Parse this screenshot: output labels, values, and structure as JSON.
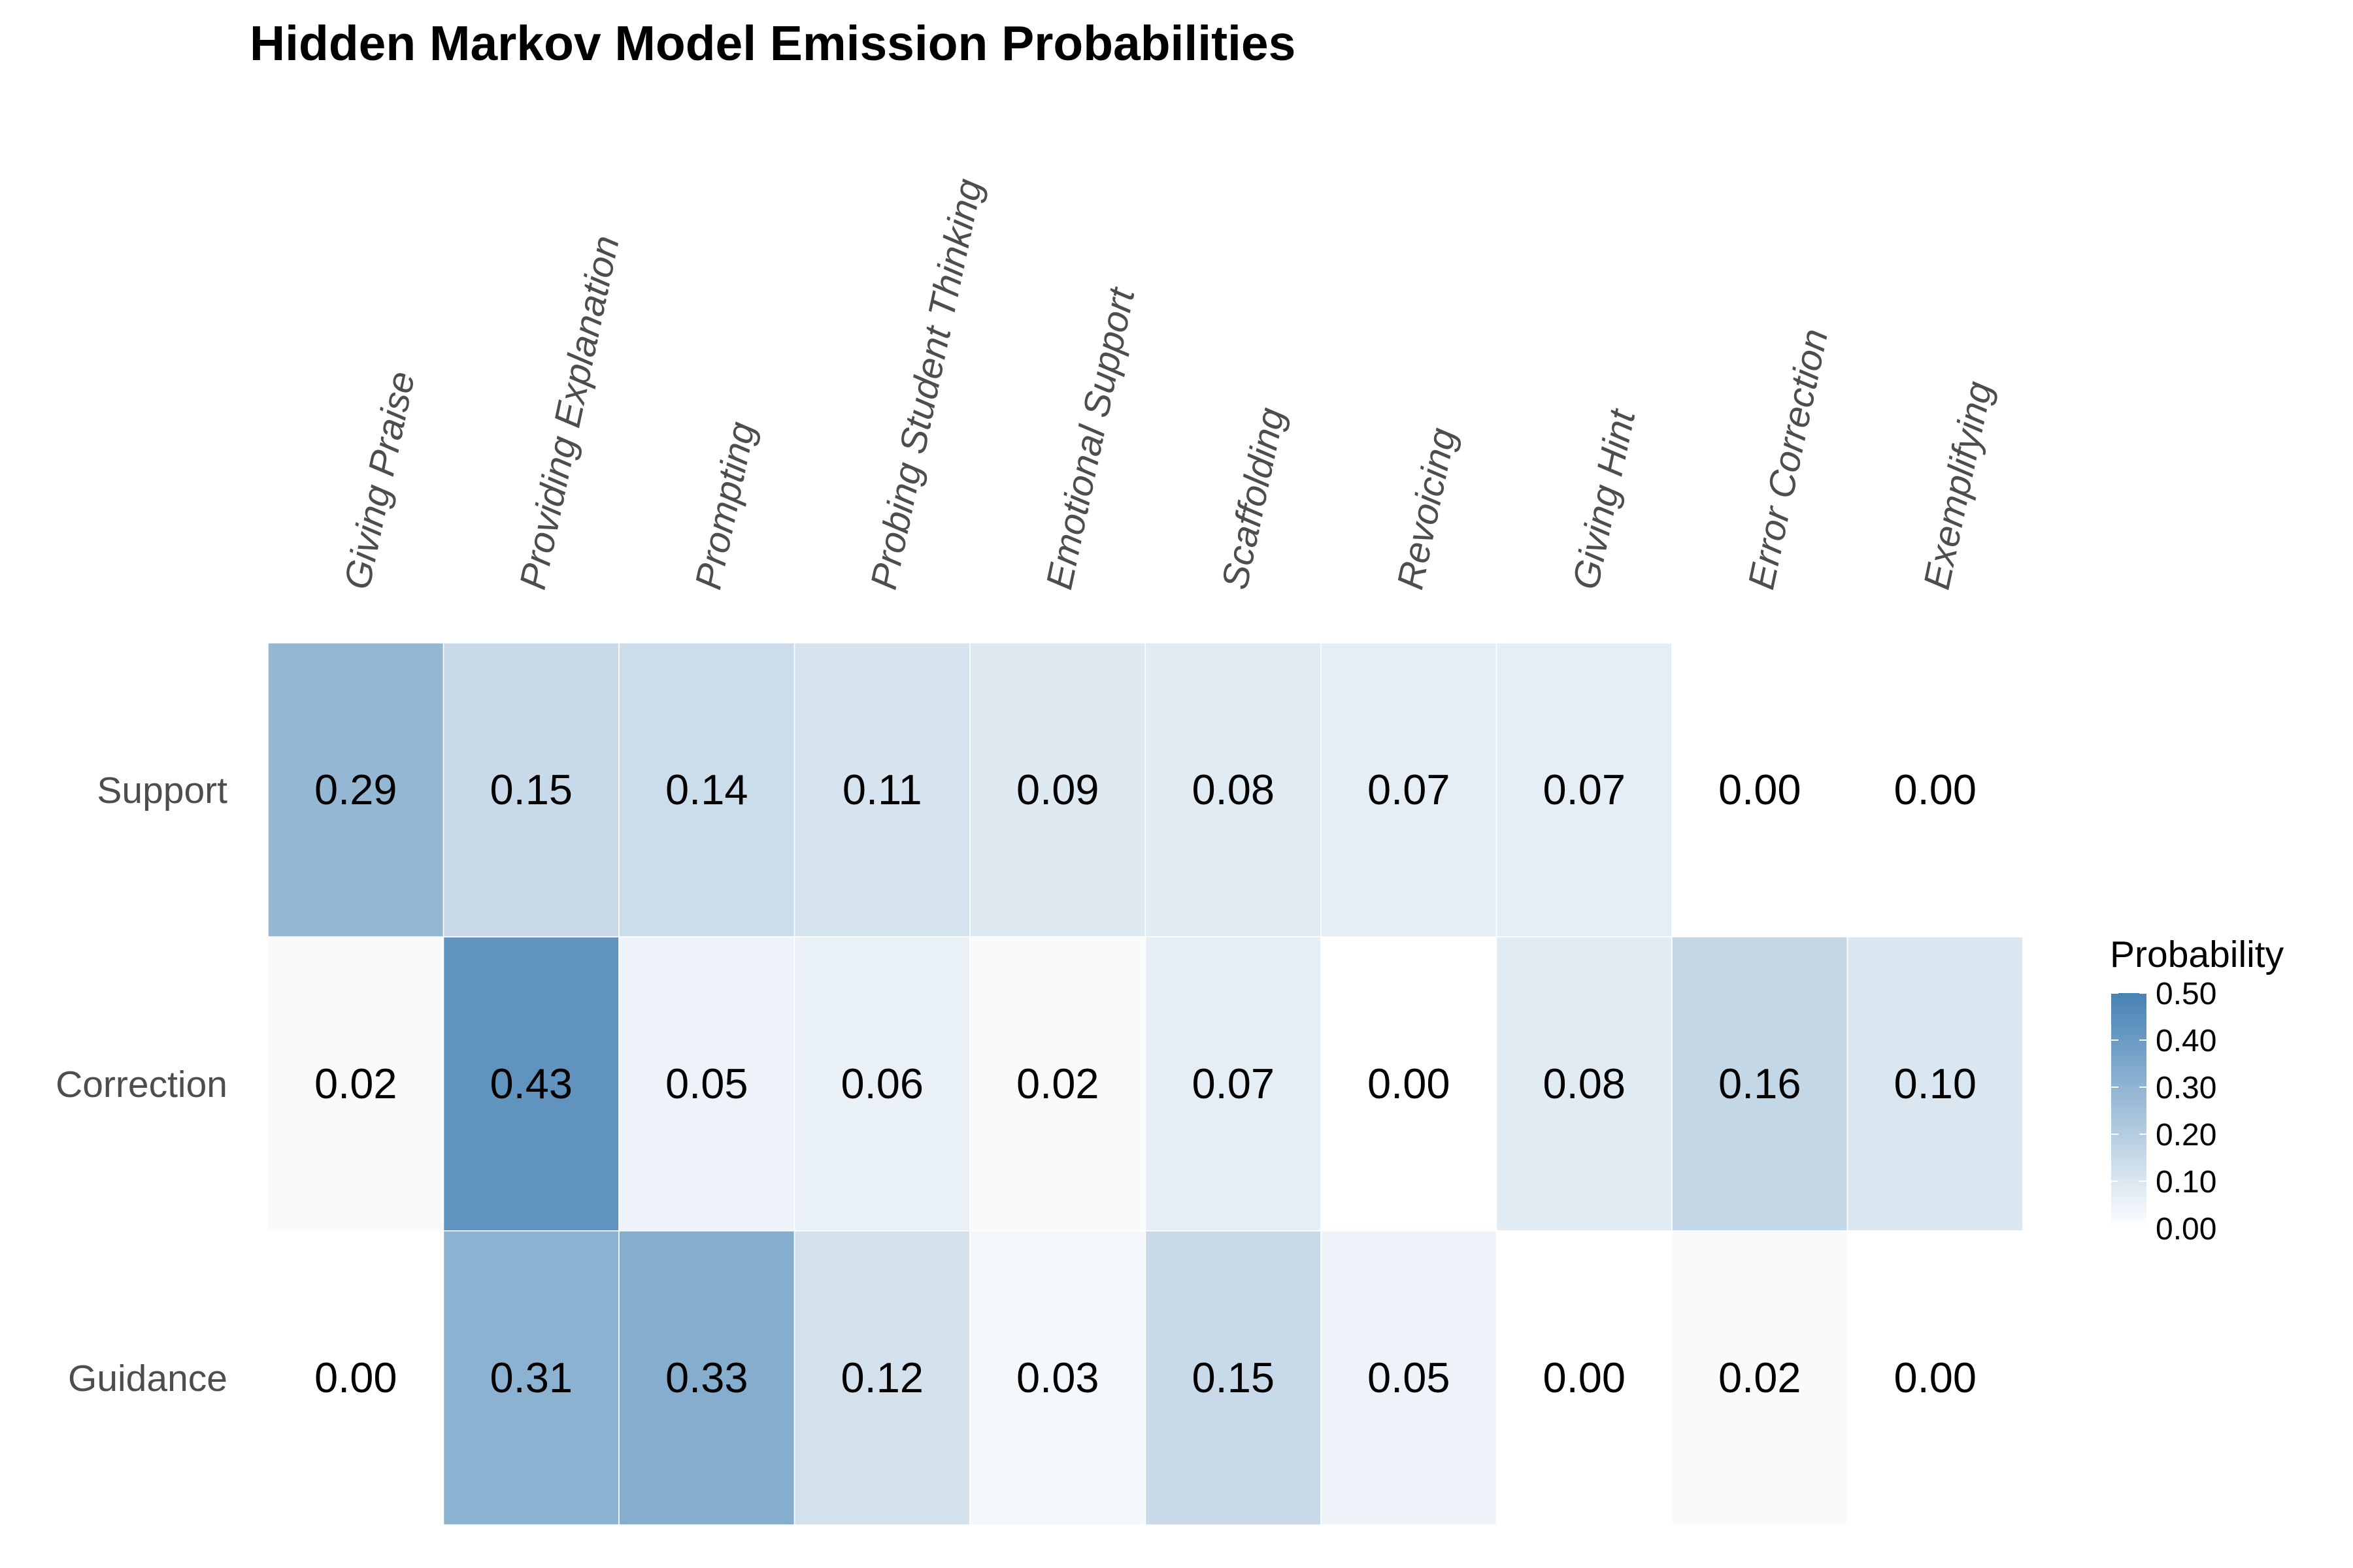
{
  "chart_data": {
    "type": "heatmap",
    "title": "Hidden Markov Model Emission Probabilities",
    "columns": [
      "Giving Praise",
      "Providing Explanation",
      "Prompting",
      "Probing Student Thinking",
      "Emotional Support",
      "Scaffolding",
      "Revoicing",
      "Giving Hint",
      "Error Correction",
      "Exemplifying"
    ],
    "rows": [
      "Support",
      "Correction",
      "Guidance"
    ],
    "values": [
      [
        0.29,
        0.15,
        0.14,
        0.11,
        0.09,
        0.08,
        0.07,
        0.07,
        0.0,
        0.0
      ],
      [
        0.02,
        0.43,
        0.05,
        0.06,
        0.02,
        0.07,
        0.0,
        0.08,
        0.16,
        0.1
      ],
      [
        0.0,
        0.31,
        0.33,
        0.12,
        0.03,
        0.15,
        0.05,
        0.0,
        0.02,
        0.0
      ]
    ],
    "labels": [
      [
        "0.29",
        "0.15",
        "0.14",
        "0.11",
        "0.09",
        "0.08",
        "0.07",
        "0.07",
        "0.00",
        "0.00"
      ],
      [
        "0.02",
        "0.43",
        "0.05",
        "0.06",
        "0.02",
        "0.07",
        "0.00",
        "0.08",
        "0.16",
        "0.10"
      ],
      [
        "0.00",
        "0.31",
        "0.33",
        "0.12",
        "0.03",
        "0.15",
        "0.05",
        "0.00",
        "0.02",
        "0.00"
      ]
    ],
    "color_scale": {
      "low": "#ffffff",
      "high": "#4682b4",
      "domain": [
        0,
        0.5
      ]
    },
    "legend": {
      "title": "Probability",
      "ticks": [
        0.5,
        0.4,
        0.3,
        0.2,
        0.1,
        0.0
      ],
      "tick_labels": [
        "0.50",
        "0.40",
        "0.30",
        "0.20",
        "0.10",
        "0.00"
      ],
      "placement": "right"
    },
    "grid": false
  }
}
